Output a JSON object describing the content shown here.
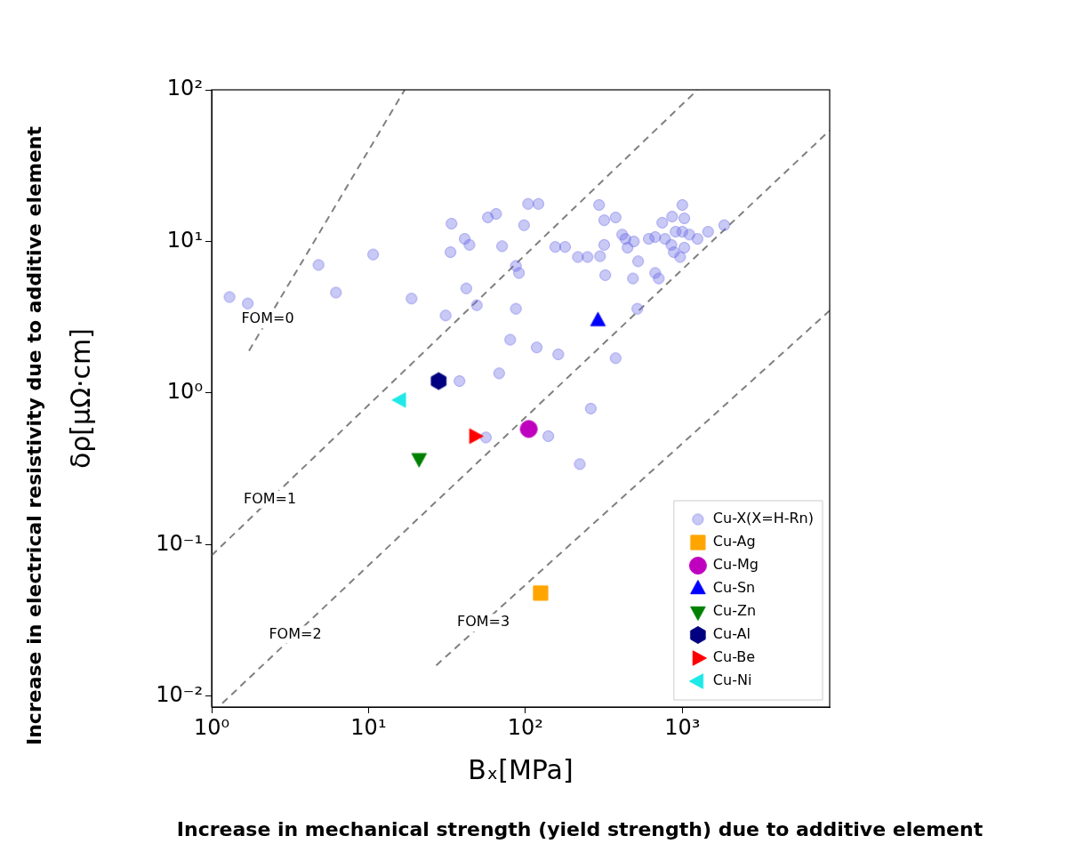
{
  "chart_data": {
    "type": "scatter",
    "xlabel": "Bₓ[MPa]",
    "ylabel": "δρ[μΩ·cm]",
    "x_caption": "Increase in mechanical strength (yield strength) due to additive element",
    "y_caption": "Increase in electrical resistivity due to additive element",
    "log": true,
    "grid": false,
    "legend": "lower right",
    "xlim": [
      1,
      8700
    ],
    "ylim": [
      0.0085,
      100
    ],
    "xticks": [
      {
        "value": 1,
        "label": "10⁰"
      },
      {
        "value": 10,
        "label": "10¹"
      },
      {
        "value": 100,
        "label": "10²"
      },
      {
        "value": 1000,
        "label": "10³"
      }
    ],
    "yticks": [
      {
        "value": 0.01,
        "label": "10⁻²"
      },
      {
        "value": 0.1,
        "label": "10⁻¹"
      },
      {
        "value": 1,
        "label": "10⁰"
      },
      {
        "value": 10,
        "label": "10¹"
      },
      {
        "value": 100,
        "label": "10²"
      }
    ],
    "series": [
      {
        "name": "Cu-X(X=H-Rn)",
        "color": "#6464e6",
        "marker": "circle",
        "x": [
          1.3,
          1.7,
          4.8,
          6.2,
          10.7,
          18.8,
          33.8,
          33.3,
          41,
          44,
          42,
          31,
          38,
          57.6,
          65,
          71,
          49,
          80,
          68,
          87,
          87,
          91,
          104,
          121,
          98,
          118,
          140,
          56,
          162,
          155,
          179,
          295,
          216,
          249,
          299,
          318,
          318,
          323,
          376,
          261,
          222,
          376,
          414,
          434,
          448,
          491,
          523,
          485,
          517,
          611,
          672,
          672,
          708,
          745,
          776,
          852,
          862,
          883,
          906,
          969,
          1000,
          1030,
          1000,
          1030,
          1110,
          1250,
          1460,
          1850
        ],
        "values": [
          4.3,
          3.9,
          7.0,
          4.6,
          8.2,
          4.2,
          13.1,
          8.5,
          10.4,
          9.5,
          4.9,
          3.25,
          1.2,
          14.4,
          15.2,
          9.3,
          3.8,
          2.25,
          1.35,
          3.6,
          6.9,
          6.2,
          17.7,
          17.7,
          12.8,
          2.0,
          0.52,
          0.51,
          1.8,
          9.2,
          9.2,
          17.4,
          7.9,
          7.9,
          8.0,
          9.5,
          13.8,
          6.0,
          14.4,
          0.79,
          0.34,
          1.7,
          11.1,
          10.4,
          9.1,
          10,
          7.4,
          5.7,
          3.6,
          10.4,
          10.7,
          6.2,
          5.7,
          13.3,
          10.4,
          9.5,
          14.6,
          8.5,
          11.6,
          7.9,
          17.4,
          14.2,
          11.6,
          9.1,
          11.1,
          10.4,
          11.6,
          12.8
        ]
      },
      {
        "name": "Cu-Ag",
        "color": "#ffa500",
        "marker": "square",
        "x": [
          125
        ],
        "values": [
          0.048
        ]
      },
      {
        "name": "Cu-Mg",
        "color": "#bf00bf",
        "marker": "circle",
        "x": [
          105
        ],
        "values": [
          0.58
        ]
      },
      {
        "name": "Cu-Sn",
        "color": "#0000ff",
        "marker": "triangle-up",
        "x": [
          290
        ],
        "values": [
          3.0
        ]
      },
      {
        "name": "Cu-Zn",
        "color": "#008000",
        "marker": "triangle-down",
        "x": [
          21
        ],
        "values": [
          0.37
        ]
      },
      {
        "name": "Cu-Al",
        "color": "#000080",
        "marker": "hexagon",
        "x": [
          28
        ],
        "values": [
          1.2
        ]
      },
      {
        "name": "Cu-Be",
        "color": "#ff0000",
        "marker": "triangle-right",
        "x": [
          47.5
        ],
        "values": [
          0.52
        ]
      },
      {
        "name": "Cu-Ni",
        "color": "#1ee8e8",
        "marker": "triangle-left",
        "x": [
          16
        ],
        "values": [
          0.9
        ]
      }
    ],
    "reference_lines": [
      {
        "label": "FOM=0",
        "color": "#808080",
        "line_style": "dashed",
        "x": [
          1.73,
          17
        ],
        "values": [
          1.9,
          100
        ]
      },
      {
        "label": "FOM=1",
        "color": "#808080",
        "line_style": "dashed",
        "x": [
          1,
          1250
        ],
        "values": [
          0.085,
          100
        ]
      },
      {
        "label": "FOM=2",
        "color": "#808080",
        "line_style": "dashed",
        "x": [
          1.17,
          8700
        ],
        "values": [
          0.009,
          54
        ]
      },
      {
        "label": "FOM=3",
        "color": "#808080",
        "line_style": "dashed",
        "x": [
          27,
          8700
        ],
        "values": [
          0.016,
          3.5
        ]
      }
    ]
  }
}
